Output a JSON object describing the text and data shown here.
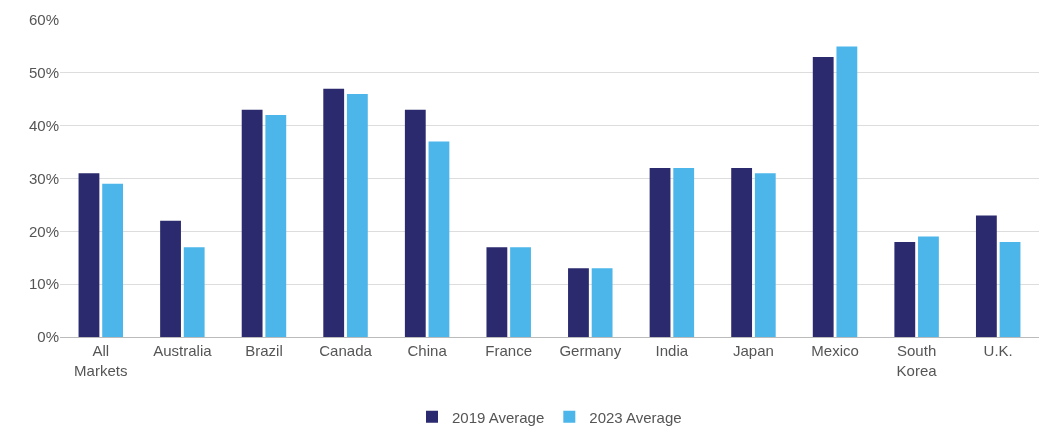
{
  "chart_data": {
    "type": "bar",
    "categories": [
      "All\nMarkets",
      "Australia",
      "Brazil",
      "Canada",
      "China",
      "France",
      "Germany",
      "India",
      "Japan",
      "Mexico",
      "South\nKorea",
      "U.K."
    ],
    "series": [
      {
        "name": "2019 Average",
        "color": "#2b2a6e",
        "values": [
          31,
          22,
          43,
          47,
          43,
          17,
          13,
          32,
          32,
          53,
          18,
          23
        ]
      },
      {
        "name": "2023 Average",
        "color": "#4cb6ea",
        "values": [
          29,
          17,
          42,
          46,
          37,
          17,
          13,
          32,
          31,
          55,
          19,
          18
        ]
      }
    ],
    "ylim": [
      0,
      60
    ],
    "yticks": [
      {
        "value": 0,
        "label": "0%"
      },
      {
        "value": 10,
        "label": "10%"
      },
      {
        "value": 20,
        "label": "20%"
      },
      {
        "value": 30,
        "label": "30%"
      },
      {
        "value": 40,
        "label": "40%"
      },
      {
        "value": 50,
        "label": "50%"
      },
      {
        "value": 60,
        "label": "60%"
      }
    ],
    "grid": "y",
    "legend": "bottom"
  }
}
